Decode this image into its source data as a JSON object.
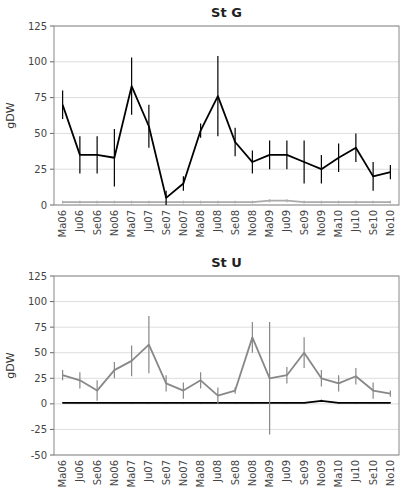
{
  "chart_data": [
    {
      "type": "line",
      "title": "St G",
      "y_label": "gDW",
      "categories": [
        "Ma06",
        "Ju06",
        "Se06",
        "No06",
        "Ma07",
        "Ju07",
        "Se07",
        "No07",
        "Ma08",
        "Ju08",
        "Se08",
        "No08",
        "Ma09",
        "Ju09",
        "Se09",
        "No09",
        "Ma10",
        "Ju10",
        "Se10",
        "No10"
      ],
      "series": [
        {
          "color": "#aaaaaa",
          "values": [
            2,
            2,
            2,
            2,
            2,
            2,
            2,
            2,
            2,
            2,
            2,
            2,
            3,
            3,
            2,
            2,
            2,
            2,
            2,
            2
          ],
          "errors": [
            1,
            1,
            1,
            1,
            1,
            1,
            1,
            1,
            1,
            1,
            1,
            1,
            1,
            1,
            1,
            1,
            1,
            1,
            1,
            1
          ]
        },
        {
          "color": "#000000",
          "values": [
            70,
            35,
            35,
            33,
            83,
            55,
            5,
            15,
            52,
            76,
            44,
            30,
            35,
            35,
            30,
            25,
            33,
            40,
            20,
            23
          ],
          "errors": [
            10,
            13,
            13,
            20,
            20,
            15,
            5,
            5,
            5,
            28,
            10,
            8,
            10,
            10,
            15,
            10,
            10,
            10,
            10,
            5
          ]
        }
      ],
      "ylim": [
        0,
        125
      ],
      "yticks": [
        0,
        25,
        50,
        75,
        100,
        125
      ],
      "grid": true
    },
    {
      "type": "line",
      "title": "St U",
      "y_label": "gDW",
      "categories": [
        "Ma06",
        "Ju06",
        "Se06",
        "No06",
        "Ma07",
        "Ju07",
        "Se07",
        "No07",
        "Ma08",
        "Ju08",
        "Se08",
        "No08",
        "Ma09",
        "Ju09",
        "Se09",
        "No09",
        "Ma10",
        "Ju10",
        "Se10",
        "No10"
      ],
      "series": [
        {
          "color": "#000000",
          "values": [
            1,
            1,
            1,
            1,
            1,
            1,
            1,
            1,
            1,
            1,
            1,
            1,
            1,
            1,
            1,
            3,
            1,
            1,
            1,
            1
          ],
          "errors": [
            0.5,
            0.5,
            0.5,
            0.5,
            0.5,
            0.5,
            0.5,
            0.5,
            0.5,
            0.5,
            0.5,
            0.5,
            0.5,
            0.5,
            0.5,
            1,
            0.5,
            0.5,
            0.5,
            0.5
          ]
        },
        {
          "color": "#888888",
          "values": [
            28,
            23,
            13,
            33,
            42,
            58,
            20,
            13,
            23,
            8,
            13,
            65,
            25,
            28,
            50,
            25,
            20,
            27,
            13,
            10
          ],
          "errors": [
            5,
            8,
            10,
            8,
            15,
            28,
            8,
            8,
            8,
            8,
            3,
            15,
            55,
            8,
            15,
            8,
            8,
            8,
            8,
            3
          ]
        }
      ],
      "ylim": [
        -50,
        125
      ],
      "yticks": [
        -50,
        -25,
        0,
        25,
        50,
        75,
        100,
        125
      ],
      "grid": true
    }
  ]
}
